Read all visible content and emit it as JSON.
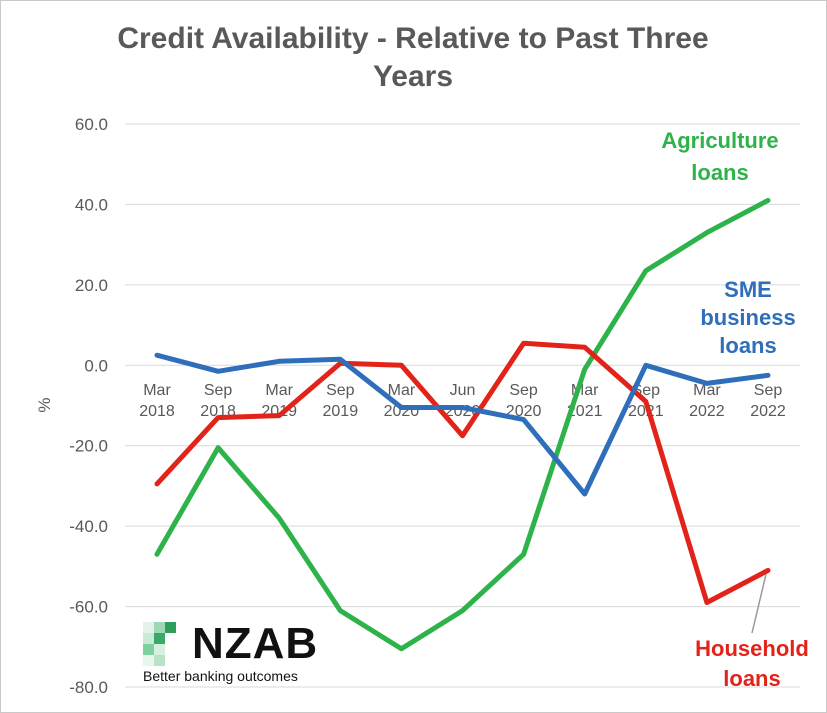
{
  "chart_data": {
    "type": "line",
    "title_lines": [
      "Credit Availability - Relative to Past Three",
      "Years"
    ],
    "ylabel": "%",
    "ylim": [
      -80,
      60
    ],
    "yticks": [
      60,
      40,
      20,
      0,
      -20,
      -40,
      -60,
      -80
    ],
    "ytick_labels": [
      "60.0",
      "40.0",
      "20.0",
      "0.0",
      "-20.0",
      "-40.0",
      "-60.0",
      "-80.0"
    ],
    "grid": true,
    "categories": [
      [
        "Mar",
        "2018"
      ],
      [
        "Sep",
        "2018"
      ],
      [
        "Mar",
        "2019"
      ],
      [
        "Sep",
        "2019"
      ],
      [
        "Mar",
        "2020"
      ],
      [
        "Jun",
        "2020"
      ],
      [
        "Sep",
        "2020"
      ],
      [
        "Mar",
        "2021"
      ],
      [
        "Sep",
        "2021"
      ],
      [
        "Mar",
        "2022"
      ],
      [
        "Sep",
        "2022"
      ]
    ],
    "series": [
      {
        "name": "Agriculture loans",
        "label_lines": [
          "Agriculture",
          "loans"
        ],
        "color": "#2eb24a",
        "values": [
          -47,
          -20.5,
          -38,
          -61,
          -70.5,
          -61,
          -47,
          -1,
          23.5,
          33,
          41
        ]
      },
      {
        "name": "SME business loans",
        "label_lines": [
          "SME",
          "business",
          "loans"
        ],
        "color": "#2f6eba",
        "values": [
          2.5,
          -1.5,
          1,
          1.5,
          -10.5,
          -10.5,
          -13.5,
          -32,
          0,
          -4.5,
          -2.5
        ]
      },
      {
        "name": "Household loans",
        "label_lines": [
          "Household",
          "loans"
        ],
        "color": "#e2231a",
        "values": [
          -29.5,
          -13,
          -12.5,
          0.5,
          0,
          -17.5,
          5.5,
          4.5,
          -9,
          -59,
          -51
        ]
      }
    ]
  },
  "logo": {
    "name": "NZAB",
    "tagline": "Better banking outcomes"
  }
}
